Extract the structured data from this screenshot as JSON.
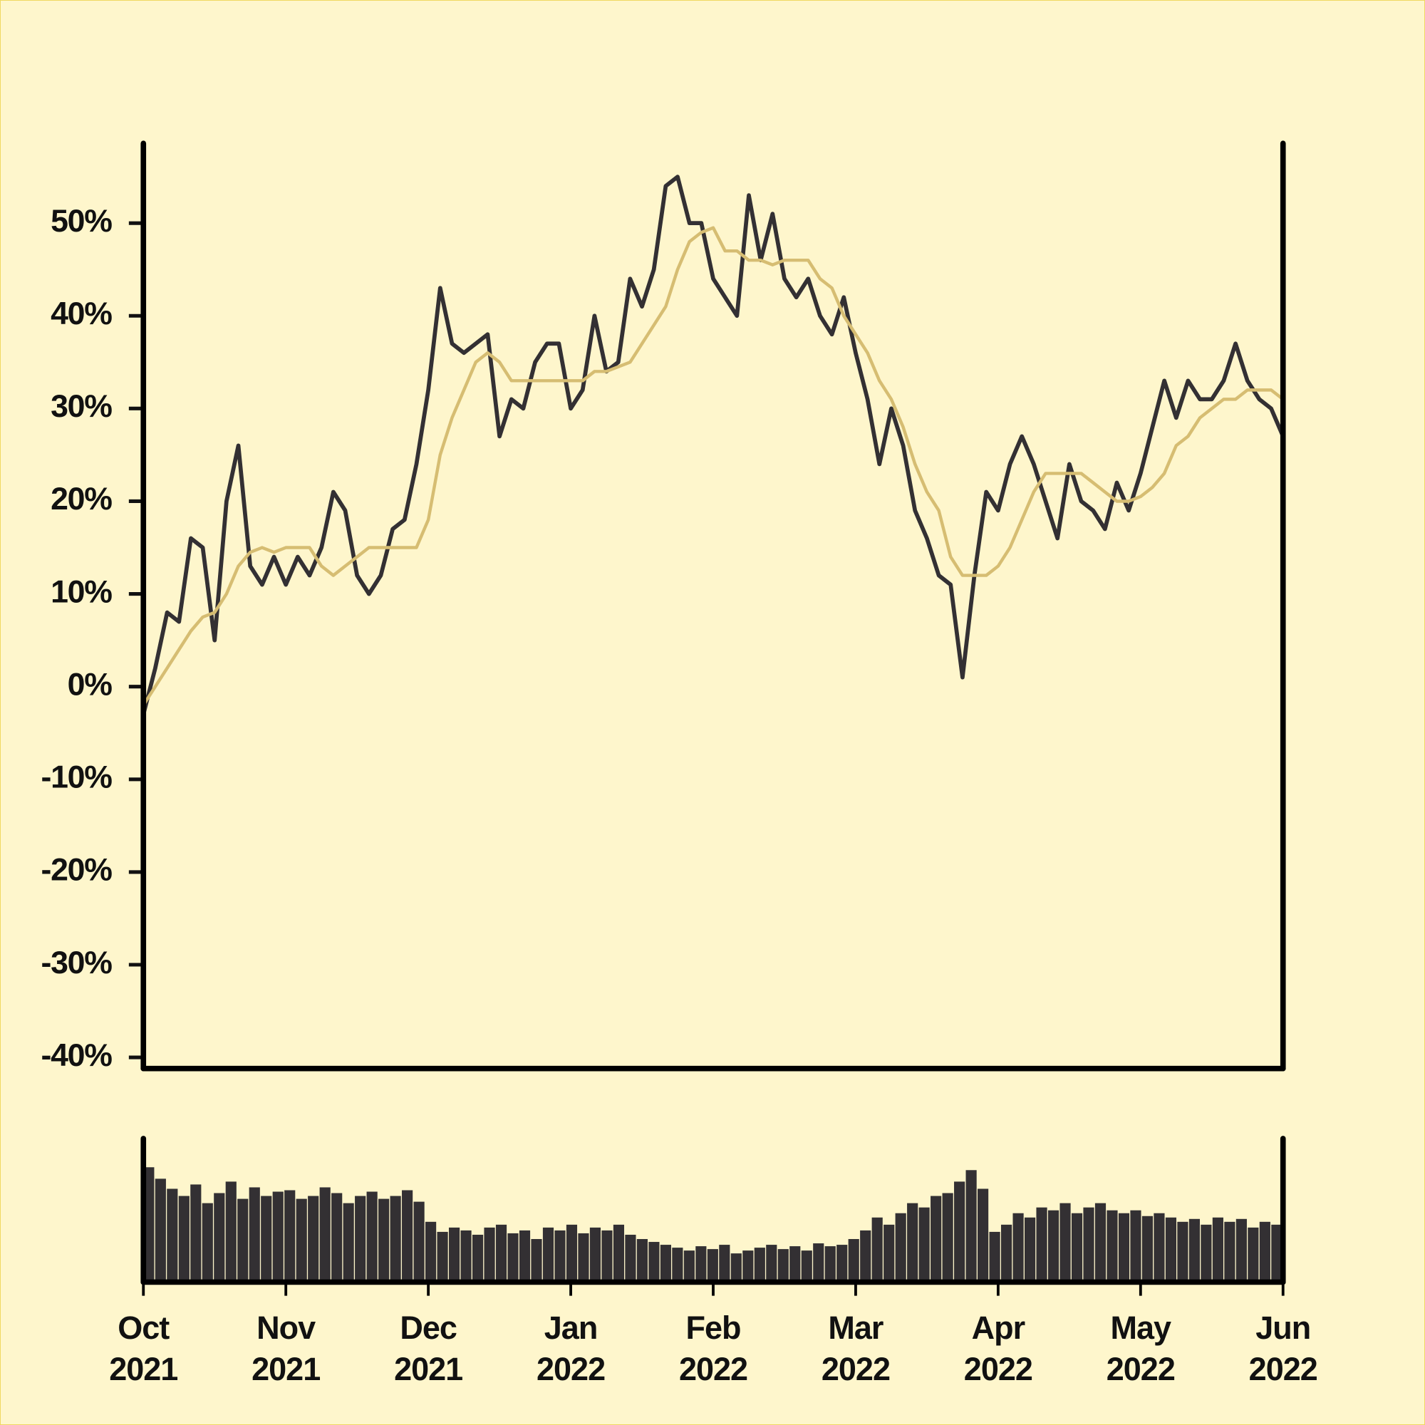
{
  "chart_data": {
    "type": "line",
    "categories": [
      "Oct\n2021",
      null,
      null,
      null,
      null,
      null,
      null,
      null,
      null,
      null,
      null,
      null,
      "Nov\n2021",
      null,
      null,
      null,
      null,
      null,
      null,
      null,
      null,
      null,
      null,
      null,
      "Dec\n2021",
      null,
      null,
      null,
      null,
      null,
      null,
      null,
      null,
      null,
      null,
      null,
      "Jan\n2022",
      null,
      null,
      null,
      null,
      null,
      null,
      null,
      null,
      null,
      null,
      null,
      "Feb\n2022",
      null,
      null,
      null,
      null,
      null,
      null,
      null,
      null,
      null,
      null,
      null,
      "Mar\n2022",
      null,
      null,
      null,
      null,
      null,
      null,
      null,
      null,
      null,
      null,
      null,
      "Apr\n2022",
      null,
      null,
      null,
      null,
      null,
      null,
      null,
      null,
      null,
      null,
      null,
      "May\n2022",
      null,
      null,
      null,
      null,
      null,
      null,
      null,
      null,
      null,
      null,
      null,
      "Jun\n2022"
    ],
    "series": [
      {
        "color": "#333033",
        "values": [
          -3,
          2,
          8,
          7,
          16,
          15,
          5,
          20,
          26,
          13,
          11,
          14,
          11,
          14,
          12,
          15,
          21,
          19,
          12,
          10,
          12,
          17,
          18,
          24,
          32,
          43,
          37,
          36,
          37,
          38,
          27,
          31,
          30,
          35,
          37,
          37,
          30,
          32,
          40,
          34,
          35,
          44,
          41,
          45,
          54,
          55,
          50,
          50,
          44,
          42,
          40,
          53,
          46,
          51,
          44,
          42,
          44,
          40,
          38,
          42,
          36,
          31,
          24,
          30,
          26,
          19,
          16,
          12,
          11,
          1,
          12,
          21,
          19,
          24,
          27,
          24,
          20,
          16,
          24,
          20,
          19,
          17,
          22,
          19,
          23,
          28,
          33,
          29,
          33,
          31,
          31,
          33,
          37,
          33,
          31,
          30,
          27
        ]
      },
      {
        "color": "#d6bd72",
        "values": [
          -2,
          0,
          2,
          4,
          6,
          7.5,
          8,
          10,
          13,
          14.5,
          15,
          14.5,
          15,
          15,
          15,
          13,
          12,
          13,
          14,
          15,
          15,
          15,
          15,
          15,
          18,
          25,
          29,
          32,
          35,
          36,
          35,
          33,
          33,
          33,
          33,
          33,
          33,
          33,
          34,
          34,
          34.5,
          35,
          37,
          39,
          41,
          45,
          48,
          49,
          49.5,
          47,
          47,
          46,
          46,
          45.5,
          46,
          46,
          46,
          44,
          43,
          40,
          38,
          36,
          33,
          31,
          28,
          24,
          21,
          19,
          14,
          12,
          12,
          12,
          13,
          15,
          18,
          21,
          23,
          23,
          23,
          23,
          22,
          21,
          20,
          20,
          20.5,
          21.5,
          23,
          26,
          27,
          29,
          30,
          31,
          31,
          32,
          32,
          32,
          31
        ]
      },
      {
        "type": "bar",
        "axis": "y2",
        "color": "#333033",
        "values": [
          80,
          72,
          65,
          60,
          68,
          55,
          62,
          70,
          58,
          66,
          60,
          63,
          64,
          58,
          60,
          66,
          62,
          55,
          60,
          63,
          58,
          60,
          64,
          56,
          42,
          35,
          38,
          36,
          33,
          38,
          40,
          34,
          36,
          30,
          38,
          36,
          40,
          34,
          38,
          36,
          40,
          33,
          30,
          28,
          26,
          24,
          22,
          25,
          23,
          26,
          20,
          22,
          24,
          26,
          23,
          25,
          22,
          27,
          25,
          26,
          30,
          36,
          45,
          40,
          48,
          55,
          52,
          60,
          62,
          70,
          78,
          65,
          35,
          40,
          48,
          45,
          52,
          50,
          55,
          48,
          52,
          55,
          50,
          48,
          50,
          46,
          48,
          45,
          42,
          44,
          40,
          45,
          42,
          44,
          38,
          42,
          40
        ]
      }
    ],
    "ylim": [
      -41.2,
      58.6
    ],
    "yticks": [
      {
        "value": -40,
        "label": "-40%"
      },
      {
        "value": -30,
        "label": "-30%"
      },
      {
        "value": -20,
        "label": "-20%"
      },
      {
        "value": -10,
        "label": "-10%"
      },
      {
        "value": 0,
        "label": "0%"
      },
      {
        "value": 10,
        "label": "10%"
      },
      {
        "value": 20,
        "label": "20%"
      },
      {
        "value": 30,
        "label": "30%"
      },
      {
        "value": 40,
        "label": "40%"
      },
      {
        "value": 50,
        "label": "50%"
      }
    ],
    "y2lim": [
      0,
      100
    ],
    "background": "#fef6cc"
  }
}
